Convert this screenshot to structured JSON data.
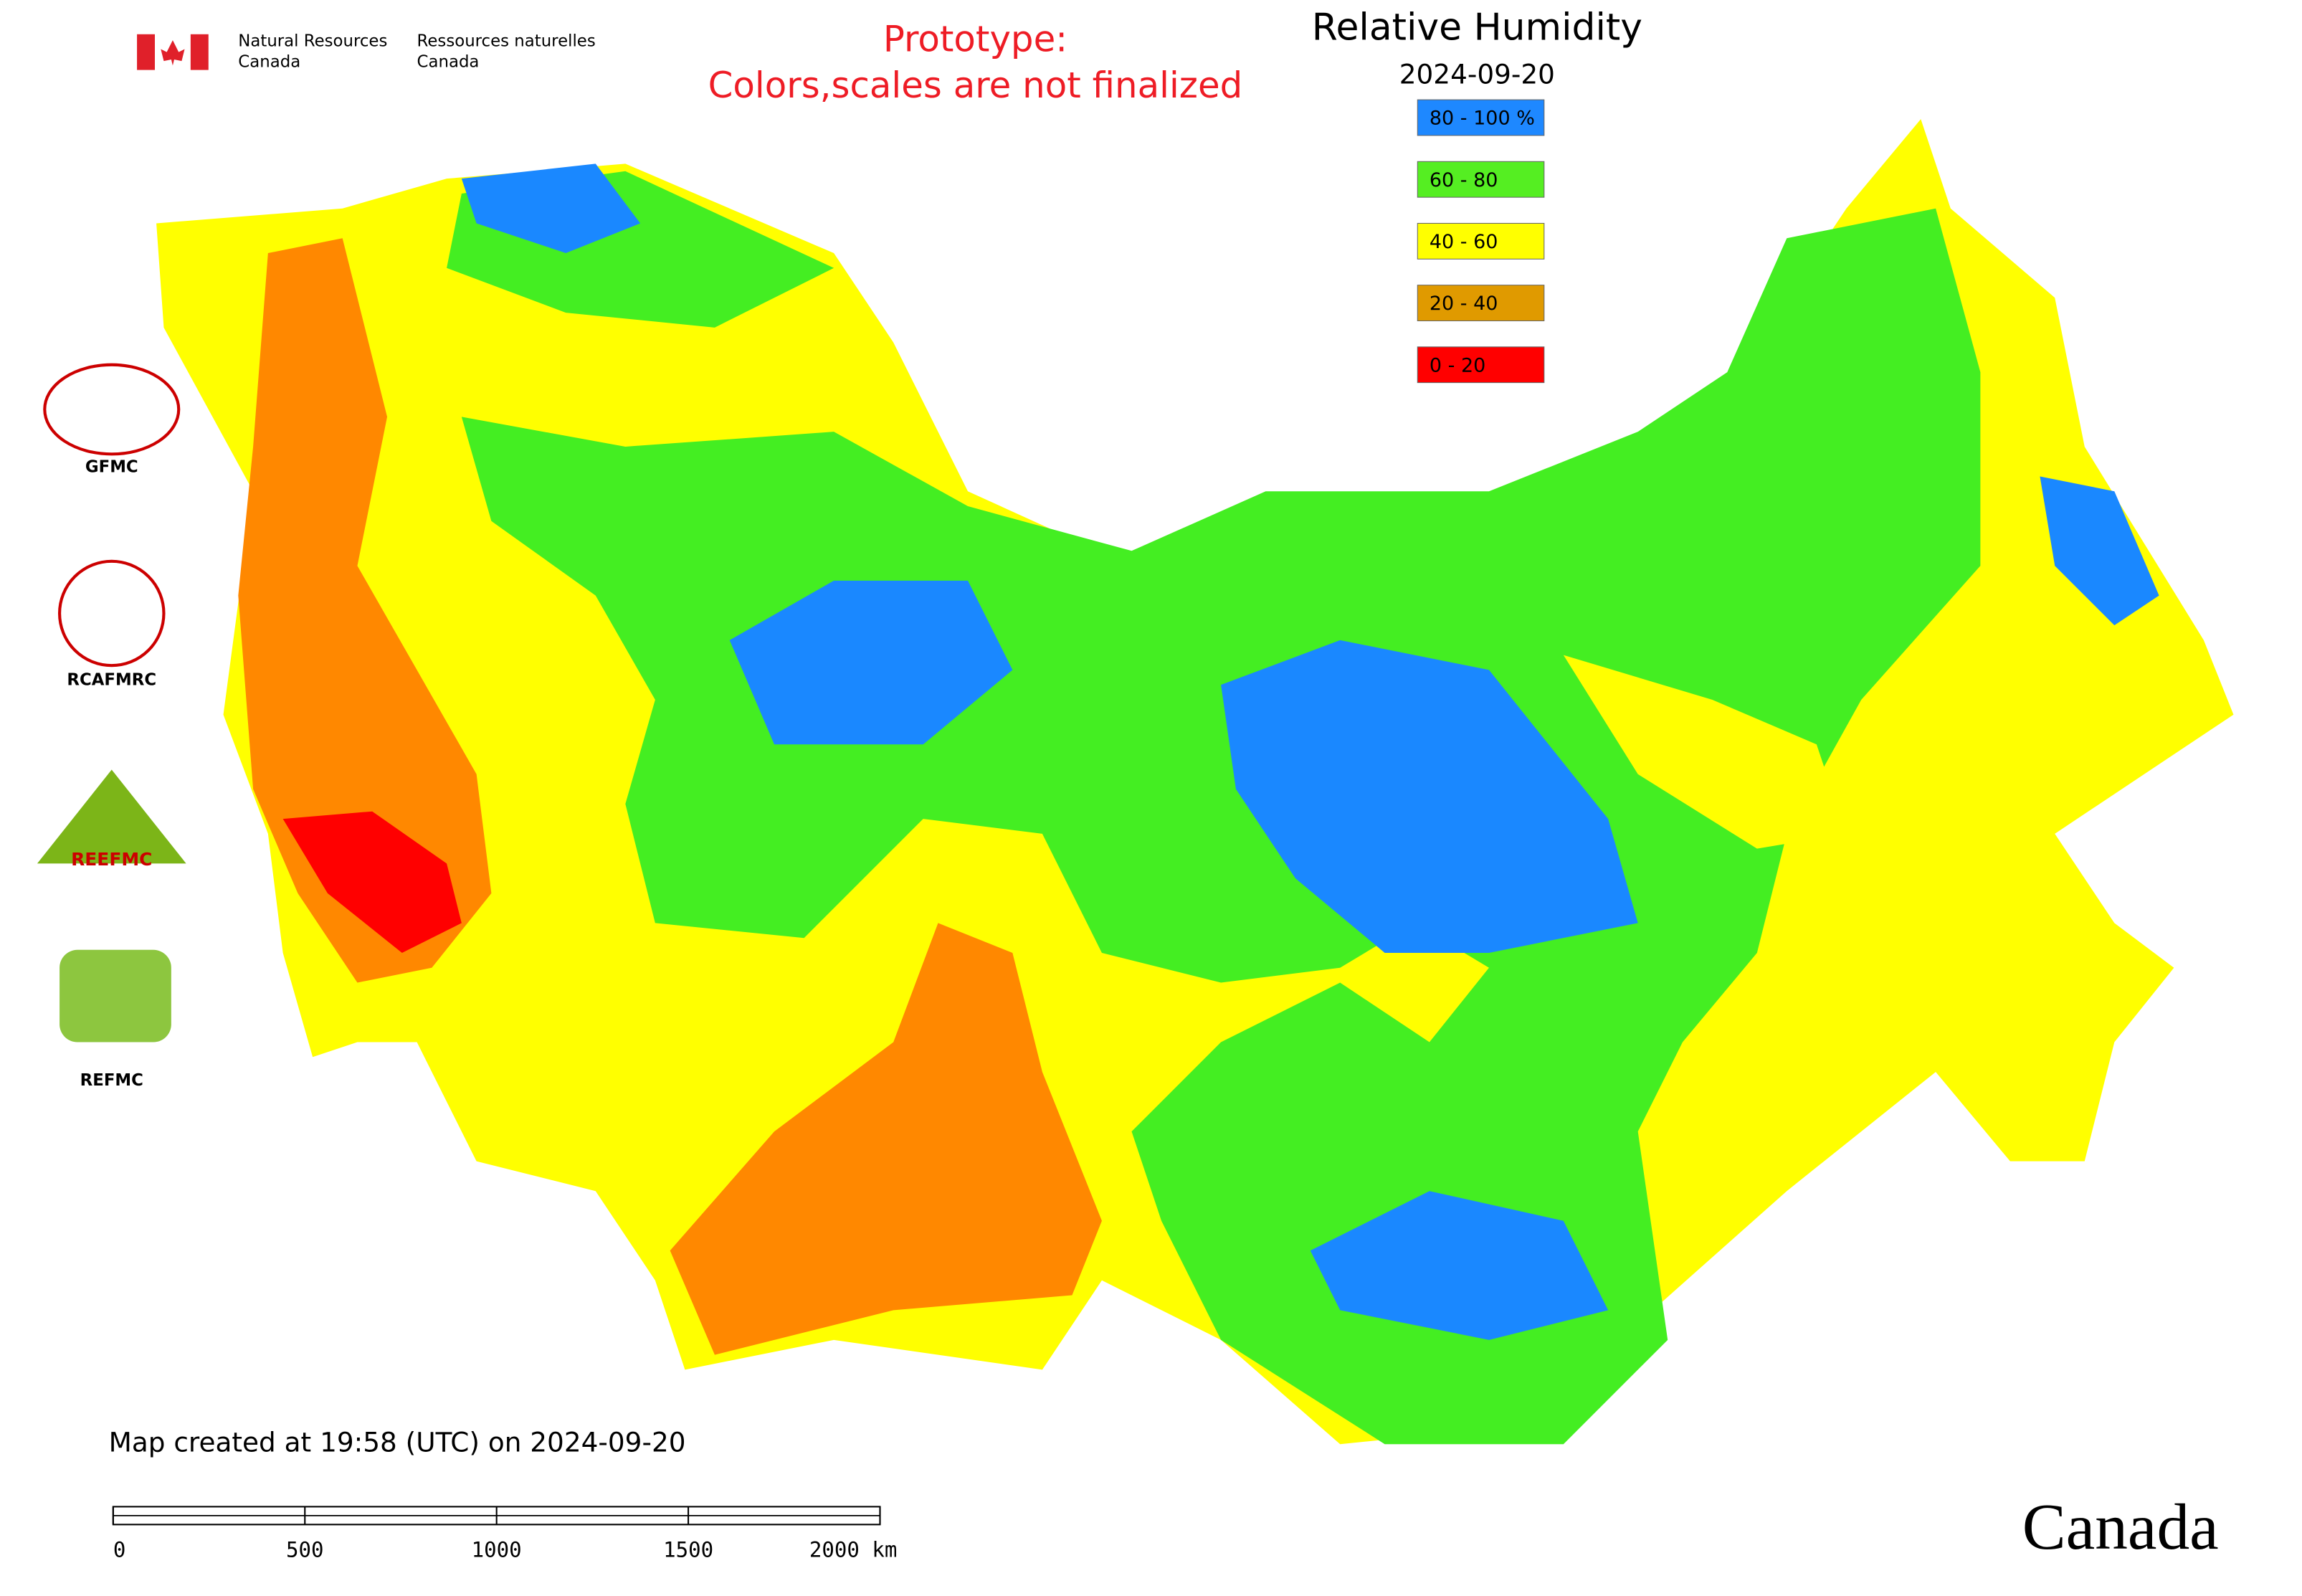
{
  "header": {
    "dept_en": [
      "Natural Resources",
      "Canada"
    ],
    "dept_fr": [
      "Ressources naturelles",
      "Canada"
    ],
    "prototype": [
      "Prototype:",
      "Colors,scales are not finalized"
    ],
    "title": "Relative Humidity",
    "date": "2024-09-20"
  },
  "legend": [
    {
      "label": "80 - 100 %",
      "color": "#1e88ff"
    },
    {
      "label": "60 - 80",
      "color": "#55ee22"
    },
    {
      "label": "40 - 60",
      "color": "#ffff00"
    },
    {
      "label": "20 - 40",
      "color": "#e09a00"
    },
    {
      "label": "0 - 20",
      "color": "#ff0000"
    }
  ],
  "logos": [
    "GFMC",
    "RCAFMRC",
    "REEFMC",
    "REFMC"
  ],
  "footer": {
    "created": "Map created at 19:58 (UTC) on 2024-09-20",
    "scale_labels": [
      "0",
      "500",
      "1000",
      "1500",
      "2000 km"
    ],
    "wordmark": "Canada"
  }
}
